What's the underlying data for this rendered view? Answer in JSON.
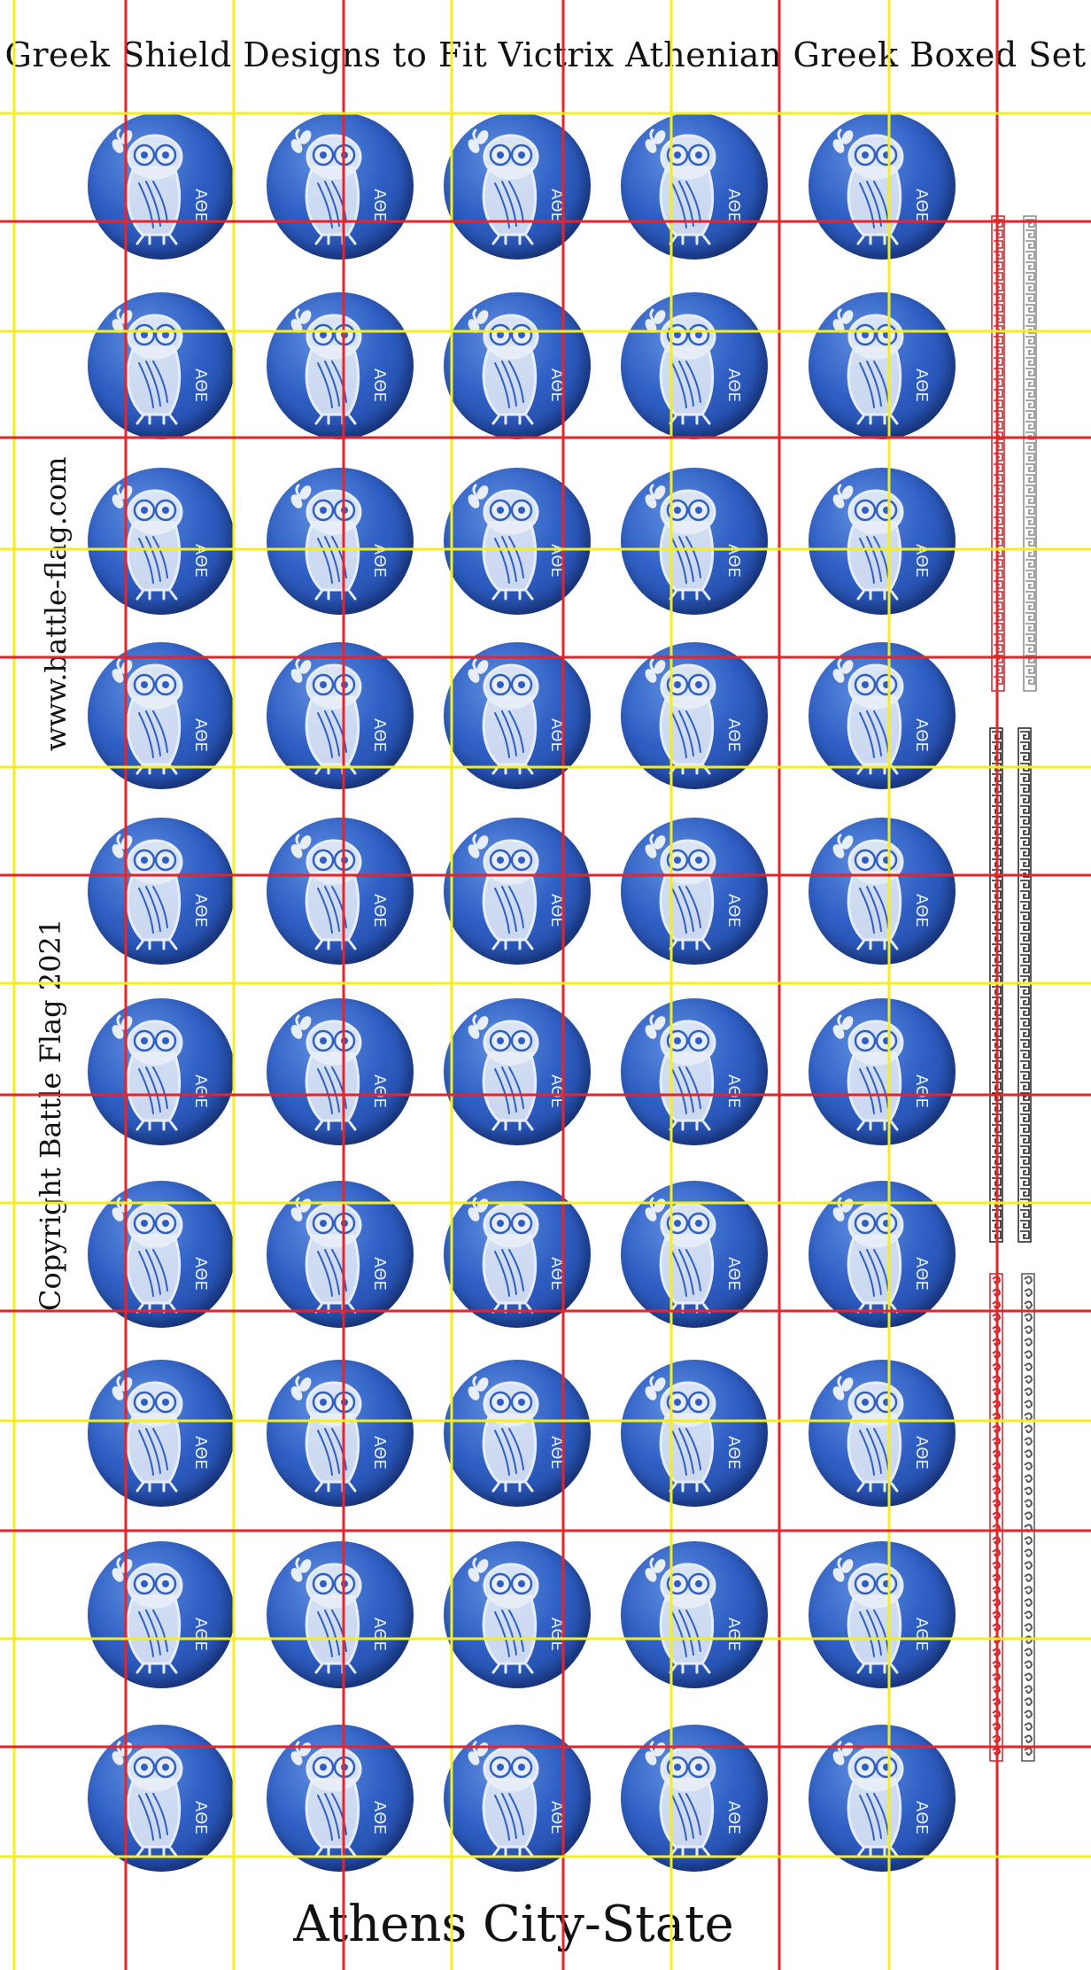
{
  "sheet": {
    "title": "Greek Shield Designs to Fit Victrix Athenian Greek Boxed Set",
    "footer": "Athens City-State",
    "side_text_website": "www.battle-flag.com",
    "side_text_copyright": "Copyright Battle Flag 2021"
  },
  "shields": {
    "design": "owl-of-athena",
    "letters": "ΑΘΕ",
    "rows": 10,
    "columns": 5,
    "count": 50
  },
  "border_strips": [
    {
      "name": "greek-key-red"
    },
    {
      "name": "greek-key-grey"
    },
    {
      "name": "meander-black-1"
    },
    {
      "name": "meander-black-2"
    },
    {
      "name": "wave-red"
    },
    {
      "name": "wave-grey"
    }
  ],
  "colors": {
    "shield_blue": "#2f5fc4",
    "owl_white": "#e8eef8",
    "guide_red": "#e8232a",
    "guide_yellow": "#f4ef1c"
  }
}
